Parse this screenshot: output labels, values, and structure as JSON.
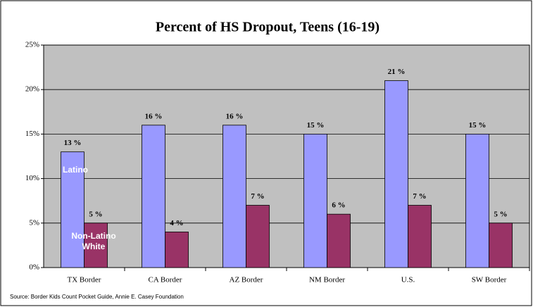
{
  "chart_data": {
    "type": "bar",
    "title": "Percent of HS Dropout, Teens (16-19)",
    "categories": [
      "TX Border",
      "CA Border",
      "AZ Border",
      "NM Border",
      "U.S.",
      "SW Border"
    ],
    "series": [
      {
        "name": "Latino",
        "color": "#9999ff",
        "values": [
          13,
          16,
          16,
          15,
          21,
          15
        ],
        "value_labels": [
          "13 %",
          "16 %",
          "16 %",
          "15 %",
          "21 %",
          "15 %"
        ]
      },
      {
        "name": "Non-Latino White",
        "color": "#993366",
        "values": [
          5,
          4,
          7,
          6,
          7,
          5
        ],
        "value_labels": [
          "5 %",
          "4 %",
          "7 %",
          "6 %",
          "7 %",
          "5 %"
        ]
      }
    ],
    "ylim": [
      0,
      25
    ],
    "yticks": [
      {
        "value": 0,
        "label": "0%"
      },
      {
        "value": 5,
        "label": "5%"
      },
      {
        "value": 10,
        "label": "10%"
      },
      {
        "value": 15,
        "label": "15%"
      },
      {
        "value": 20,
        "label": "20%"
      },
      {
        "value": 25,
        "label": "25%"
      }
    ],
    "grid": true,
    "source": "Source:  Border Kids Count Pocket Guide, Annie E. Casey Foundation"
  }
}
